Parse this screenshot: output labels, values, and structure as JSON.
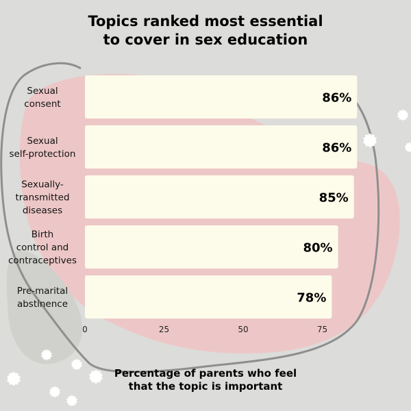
{
  "chart_data": {
    "type": "bar",
    "orientation": "horizontal",
    "title_lines": [
      "Topics ranked most essential",
      "to cover in sex education"
    ],
    "categories": [
      [
        "Sexual",
        "consent"
      ],
      [
        "Sexual",
        "self-protection"
      ],
      [
        "Sexually-",
        "transmitted",
        "diseases"
      ],
      [
        "Birth",
        "control and",
        "contraceptives"
      ],
      [
        "Pre-marital",
        "abstinence"
      ]
    ],
    "values": [
      86,
      86,
      85,
      80,
      78
    ],
    "value_labels": [
      "86%",
      "86%",
      "85%",
      "80%",
      "78%"
    ],
    "x_ticks": [
      0,
      25,
      50,
      75
    ],
    "xlim": [
      0,
      100
    ],
    "xlabel_lines": [
      "Percentage of parents who feel",
      "that the topic is important"
    ],
    "grid": false,
    "legend": "none",
    "bar_color": "#fdfbe9",
    "background_color": "#dcdcda",
    "blob_color": "#edc7c7"
  }
}
